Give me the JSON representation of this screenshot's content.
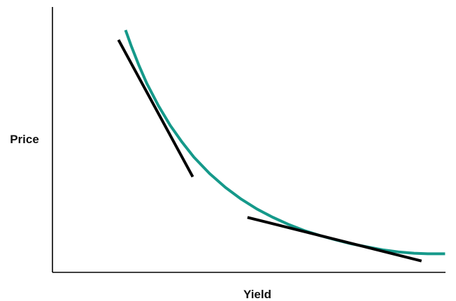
{
  "chart_data": {
    "type": "line",
    "title": "",
    "xlabel": "Yield",
    "ylabel": "Price",
    "ticks_shown": false,
    "grid": false,
    "legend": "none",
    "xlim": [
      0,
      100
    ],
    "ylim": [
      0,
      100
    ],
    "series": [
      {
        "kind": "curve",
        "color": "#15998a",
        "x": [
          18.6,
          20,
          22,
          24,
          27,
          30,
          33,
          36,
          40,
          44,
          48,
          52,
          56,
          60,
          64,
          68,
          72,
          76,
          80,
          84,
          88,
          92,
          95.5,
          99.9
        ],
        "y": [
          91.3,
          85.5,
          78.0,
          71.2,
          62.7,
          55.3,
          49.0,
          43.4,
          37.2,
          32.0,
          27.6,
          23.9,
          20.8,
          18.1,
          15.8,
          13.9,
          12.3,
          10.8,
          9.6,
          8.5,
          7.7,
          7.2,
          7.0,
          7.0
        ]
      },
      {
        "kind": "tangent",
        "color": "#000000",
        "x": [
          16.8,
          35.7
        ],
        "y": [
          87.6,
          36.0
        ]
      },
      {
        "kind": "tangent",
        "color": "#000000",
        "x": [
          49.6,
          93.9
        ],
        "y": [
          20.7,
          4.3
        ]
      }
    ]
  }
}
